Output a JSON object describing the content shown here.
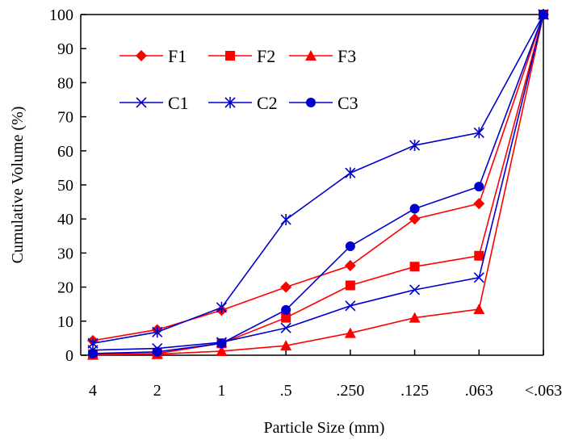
{
  "chart_data": {
    "type": "line",
    "title": "",
    "xlabel": "Particle Size (mm)",
    "ylabel": "Cumulative Volume (%)",
    "categories": [
      "4",
      "2",
      "1",
      ".5",
      ".250",
      ".125",
      ".063",
      "<.063"
    ],
    "ylim": [
      0,
      100
    ],
    "yticks": [
      0,
      10,
      20,
      30,
      40,
      50,
      60,
      70,
      80,
      90,
      100
    ],
    "grid": false,
    "legend_position": "top-left",
    "series": [
      {
        "name": "F1",
        "color": "#ff0000",
        "marker": "diamond",
        "values": [
          4.3,
          7.5,
          13.2,
          20,
          26.3,
          40,
          44.5,
          100
        ]
      },
      {
        "name": "F2",
        "color": "#ff0000",
        "marker": "square",
        "values": [
          0.3,
          0.5,
          3.5,
          11,
          20.5,
          26,
          29.2,
          100
        ]
      },
      {
        "name": "F3",
        "color": "#ff0000",
        "marker": "triangle",
        "values": [
          0.1,
          0.3,
          1.2,
          2.8,
          6.5,
          11,
          13.5,
          100
        ]
      },
      {
        "name": "C1",
        "color": "#0000cc",
        "marker": "x",
        "values": [
          1.5,
          2,
          3.8,
          8,
          14.5,
          19.2,
          22.8,
          100
        ]
      },
      {
        "name": "C2",
        "color": "#0000cc",
        "marker": "asterisk",
        "values": [
          3.5,
          6.8,
          14,
          39.8,
          53.5,
          61.6,
          65.3,
          100
        ]
      },
      {
        "name": "C3",
        "color": "#0000cc",
        "marker": "circle",
        "values": [
          0.5,
          1,
          3.5,
          13.3,
          32,
          43,
          49.5,
          100
        ]
      }
    ]
  }
}
